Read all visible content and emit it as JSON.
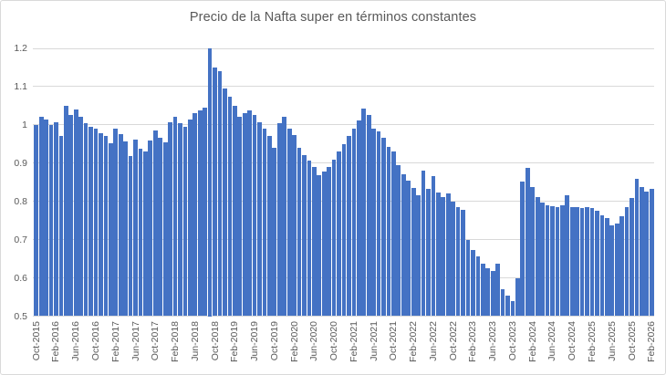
{
  "chart_data": {
    "type": "bar",
    "title": "Precio de la Nafta super en términos constantes",
    "bar_color": "#4472C4",
    "grid": true,
    "gridline_color": "#D9D9D9",
    "text_color": "#595959",
    "ylim": [
      0.5,
      1.2
    ],
    "y_ticks": [
      1.2,
      1.1,
      1,
      0.9,
      0.8,
      0.7,
      0.6,
      0.5
    ],
    "y_tick_labels": [
      "1.2",
      "1.1",
      "1",
      "0.9",
      "0.8",
      "0.7",
      "0.6",
      "0.5"
    ],
    "x_tick_every": 4,
    "x_tick_labels_visible": [
      "Oct-2015",
      "Feb-2016",
      "Jun-2016",
      "Oct-2016",
      "Feb-2017",
      "Jun-2017",
      "Oct-2017",
      "Feb-2018",
      "Jun-2018",
      "Oct-2018",
      "Feb-2019",
      "Jun-2019",
      "Oct-2019",
      "Feb-2020",
      "Jun-2020",
      "Oct-2020",
      "Feb-2021",
      "Jun-2021",
      "Oct-2021",
      "Feb-2022",
      "Jun-2022",
      "Oct-2022",
      "Feb-2023",
      "Jun-2023",
      "Oct-2023",
      "Feb-2024",
      "Jun-2024",
      "Oct-2024",
      "Feb-2025",
      "Jun-2025",
      "Oct-2025",
      "Feb-2026"
    ],
    "categories": [
      "Oct-2015",
      "Nov-2015",
      "Dec-2015",
      "Jan-2016",
      "Feb-2016",
      "Mar-2016",
      "Apr-2016",
      "May-2016",
      "Jun-2016",
      "Jul-2016",
      "Aug-2016",
      "Sep-2016",
      "Oct-2016",
      "Nov-2016",
      "Dec-2016",
      "Jan-2017",
      "Feb-2017",
      "Mar-2017",
      "Apr-2017",
      "May-2017",
      "Jun-2017",
      "Jul-2017",
      "Aug-2017",
      "Sep-2017",
      "Oct-2017",
      "Nov-2017",
      "Dec-2017",
      "Jan-2018",
      "Feb-2018",
      "Mar-2018",
      "Apr-2018",
      "May-2018",
      "Jun-2018",
      "Jul-2018",
      "Aug-2018",
      "Sep-2018",
      "Oct-2018",
      "Nov-2018",
      "Dec-2018",
      "Jan-2019",
      "Feb-2019",
      "Mar-2019",
      "Apr-2019",
      "May-2019",
      "Jun-2019",
      "Jul-2019",
      "Aug-2019",
      "Sep-2019",
      "Oct-2019",
      "Nov-2019",
      "Dec-2019",
      "Jan-2020",
      "Feb-2020",
      "Mar-2020",
      "Apr-2020",
      "May-2020",
      "Jun-2020",
      "Jul-2020",
      "Aug-2020",
      "Sep-2020",
      "Oct-2020",
      "Nov-2020",
      "Dec-2020",
      "Jan-2021",
      "Feb-2021",
      "Mar-2021",
      "Apr-2021",
      "May-2021",
      "Jun-2021",
      "Jul-2021",
      "Aug-2021",
      "Sep-2021",
      "Oct-2021",
      "Nov-2021",
      "Dec-2021",
      "Jan-2022",
      "Feb-2022",
      "Mar-2022",
      "Apr-2022",
      "May-2022",
      "Jun-2022",
      "Jul-2022",
      "Aug-2022",
      "Sep-2022",
      "Oct-2022",
      "Nov-2022",
      "Dec-2022",
      "Jan-2023",
      "Feb-2023",
      "Mar-2023",
      "Apr-2023",
      "May-2023",
      "Jun-2023",
      "Jul-2023",
      "Aug-2023",
      "Sep-2023",
      "Oct-2023",
      "Nov-2023",
      "Dec-2023",
      "Jan-2024",
      "Feb-2024",
      "Mar-2024",
      "Apr-2024",
      "May-2024",
      "Jun-2024",
      "Jul-2024",
      "Aug-2024",
      "Sep-2024",
      "Oct-2024",
      "Nov-2024",
      "Dec-2024",
      "Jan-2025",
      "Feb-2025",
      "Mar-2025",
      "Apr-2025",
      "May-2025",
      "Jun-2025",
      "Jul-2025",
      "Aug-2025",
      "Sep-2025",
      "Oct-2025",
      "Nov-2025",
      "Dec-2025",
      "Jan-2026",
      "Feb-2026"
    ],
    "values": [
      1.0,
      1.022,
      1.015,
      1.0,
      1.008,
      0.972,
      1.05,
      1.026,
      1.04,
      1.022,
      1.004,
      0.995,
      0.99,
      0.979,
      0.97,
      0.951,
      0.99,
      0.976,
      0.956,
      0.918,
      0.962,
      0.938,
      0.93,
      0.958,
      0.985,
      0.966,
      0.955,
      1.008,
      1.02,
      1.004,
      0.995,
      1.014,
      1.03,
      1.038,
      1.044,
      1.2,
      1.15,
      1.14,
      1.094,
      1.074,
      1.05,
      1.02,
      1.03,
      1.038,
      1.026,
      1.006,
      0.99,
      0.972,
      0.94,
      1.005,
      1.022,
      0.99,
      0.973,
      0.94,
      0.922,
      0.907,
      0.889,
      0.868,
      0.877,
      0.89,
      0.91,
      0.93,
      0.95,
      0.97,
      0.99,
      1.012,
      1.042,
      1.026,
      0.99,
      0.982,
      0.966,
      0.943,
      0.93,
      0.895,
      0.871,
      0.855,
      0.836,
      0.816,
      0.881,
      0.832,
      0.866,
      0.824,
      0.812,
      0.82,
      0.8,
      0.786,
      0.778,
      0.7,
      0.673,
      0.657,
      0.637,
      0.625,
      0.619,
      0.637,
      0.57,
      0.554,
      0.54,
      0.598,
      0.852,
      0.888,
      0.838,
      0.812,
      0.796,
      0.79,
      0.788,
      0.786,
      0.79,
      0.816,
      0.786,
      0.784,
      0.782,
      0.786,
      0.782,
      0.775,
      0.764,
      0.756,
      0.738,
      0.742,
      0.76,
      0.785,
      0.808,
      0.86,
      0.838,
      0.825,
      0.832
    ]
  }
}
